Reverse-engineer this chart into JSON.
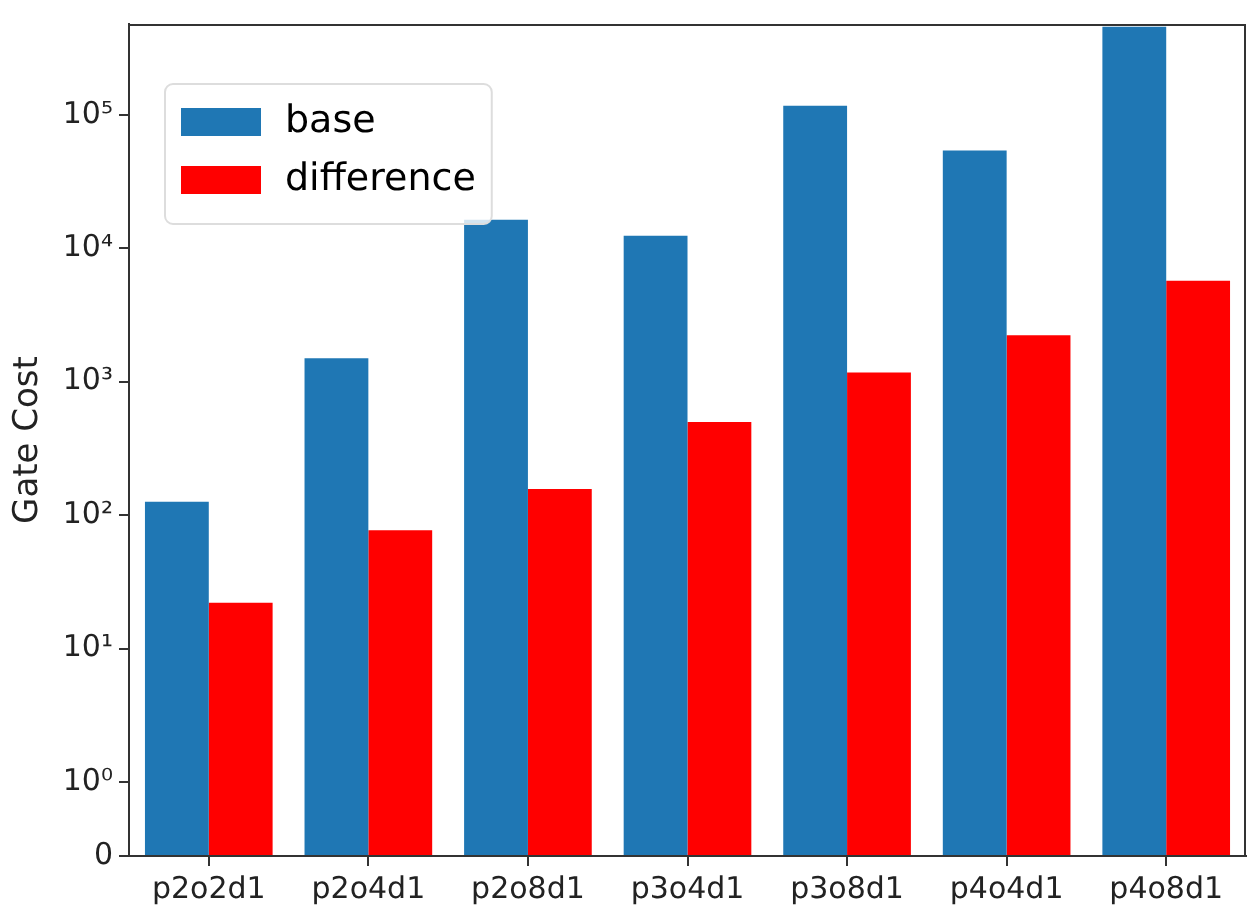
{
  "chart_data": {
    "type": "bar",
    "ylabel": "Gate Cost",
    "categories": [
      "p2o2d1",
      "p2o4d1",
      "p2o8d1",
      "p3o4d1",
      "p3o8d1",
      "p4o4d1",
      "p4o8d1"
    ],
    "series": [
      {
        "name": "base",
        "color": "#1f77b4",
        "values": [
          126,
          1500,
          16400,
          12400,
          117000,
          54000,
          457000
        ]
      },
      {
        "name": "difference",
        "color": "#ff0000",
        "values": [
          22,
          77,
          157,
          500,
          1170,
          2230,
          5700
        ]
      }
    ],
    "log": true,
    "ylim": [
      0,
      480000
    ],
    "yticks": [
      0,
      {
        "value": 1,
        "label": "10⁰"
      },
      {
        "value": 10,
        "label": "10¹"
      },
      {
        "value": 100,
        "label": "10²"
      },
      {
        "value": 1000,
        "label": "10³"
      },
      {
        "value": 10000,
        "label": "10⁴"
      },
      {
        "value": 100000,
        "label": "10⁵"
      }
    ],
    "legend": "top left",
    "grid": false
  }
}
